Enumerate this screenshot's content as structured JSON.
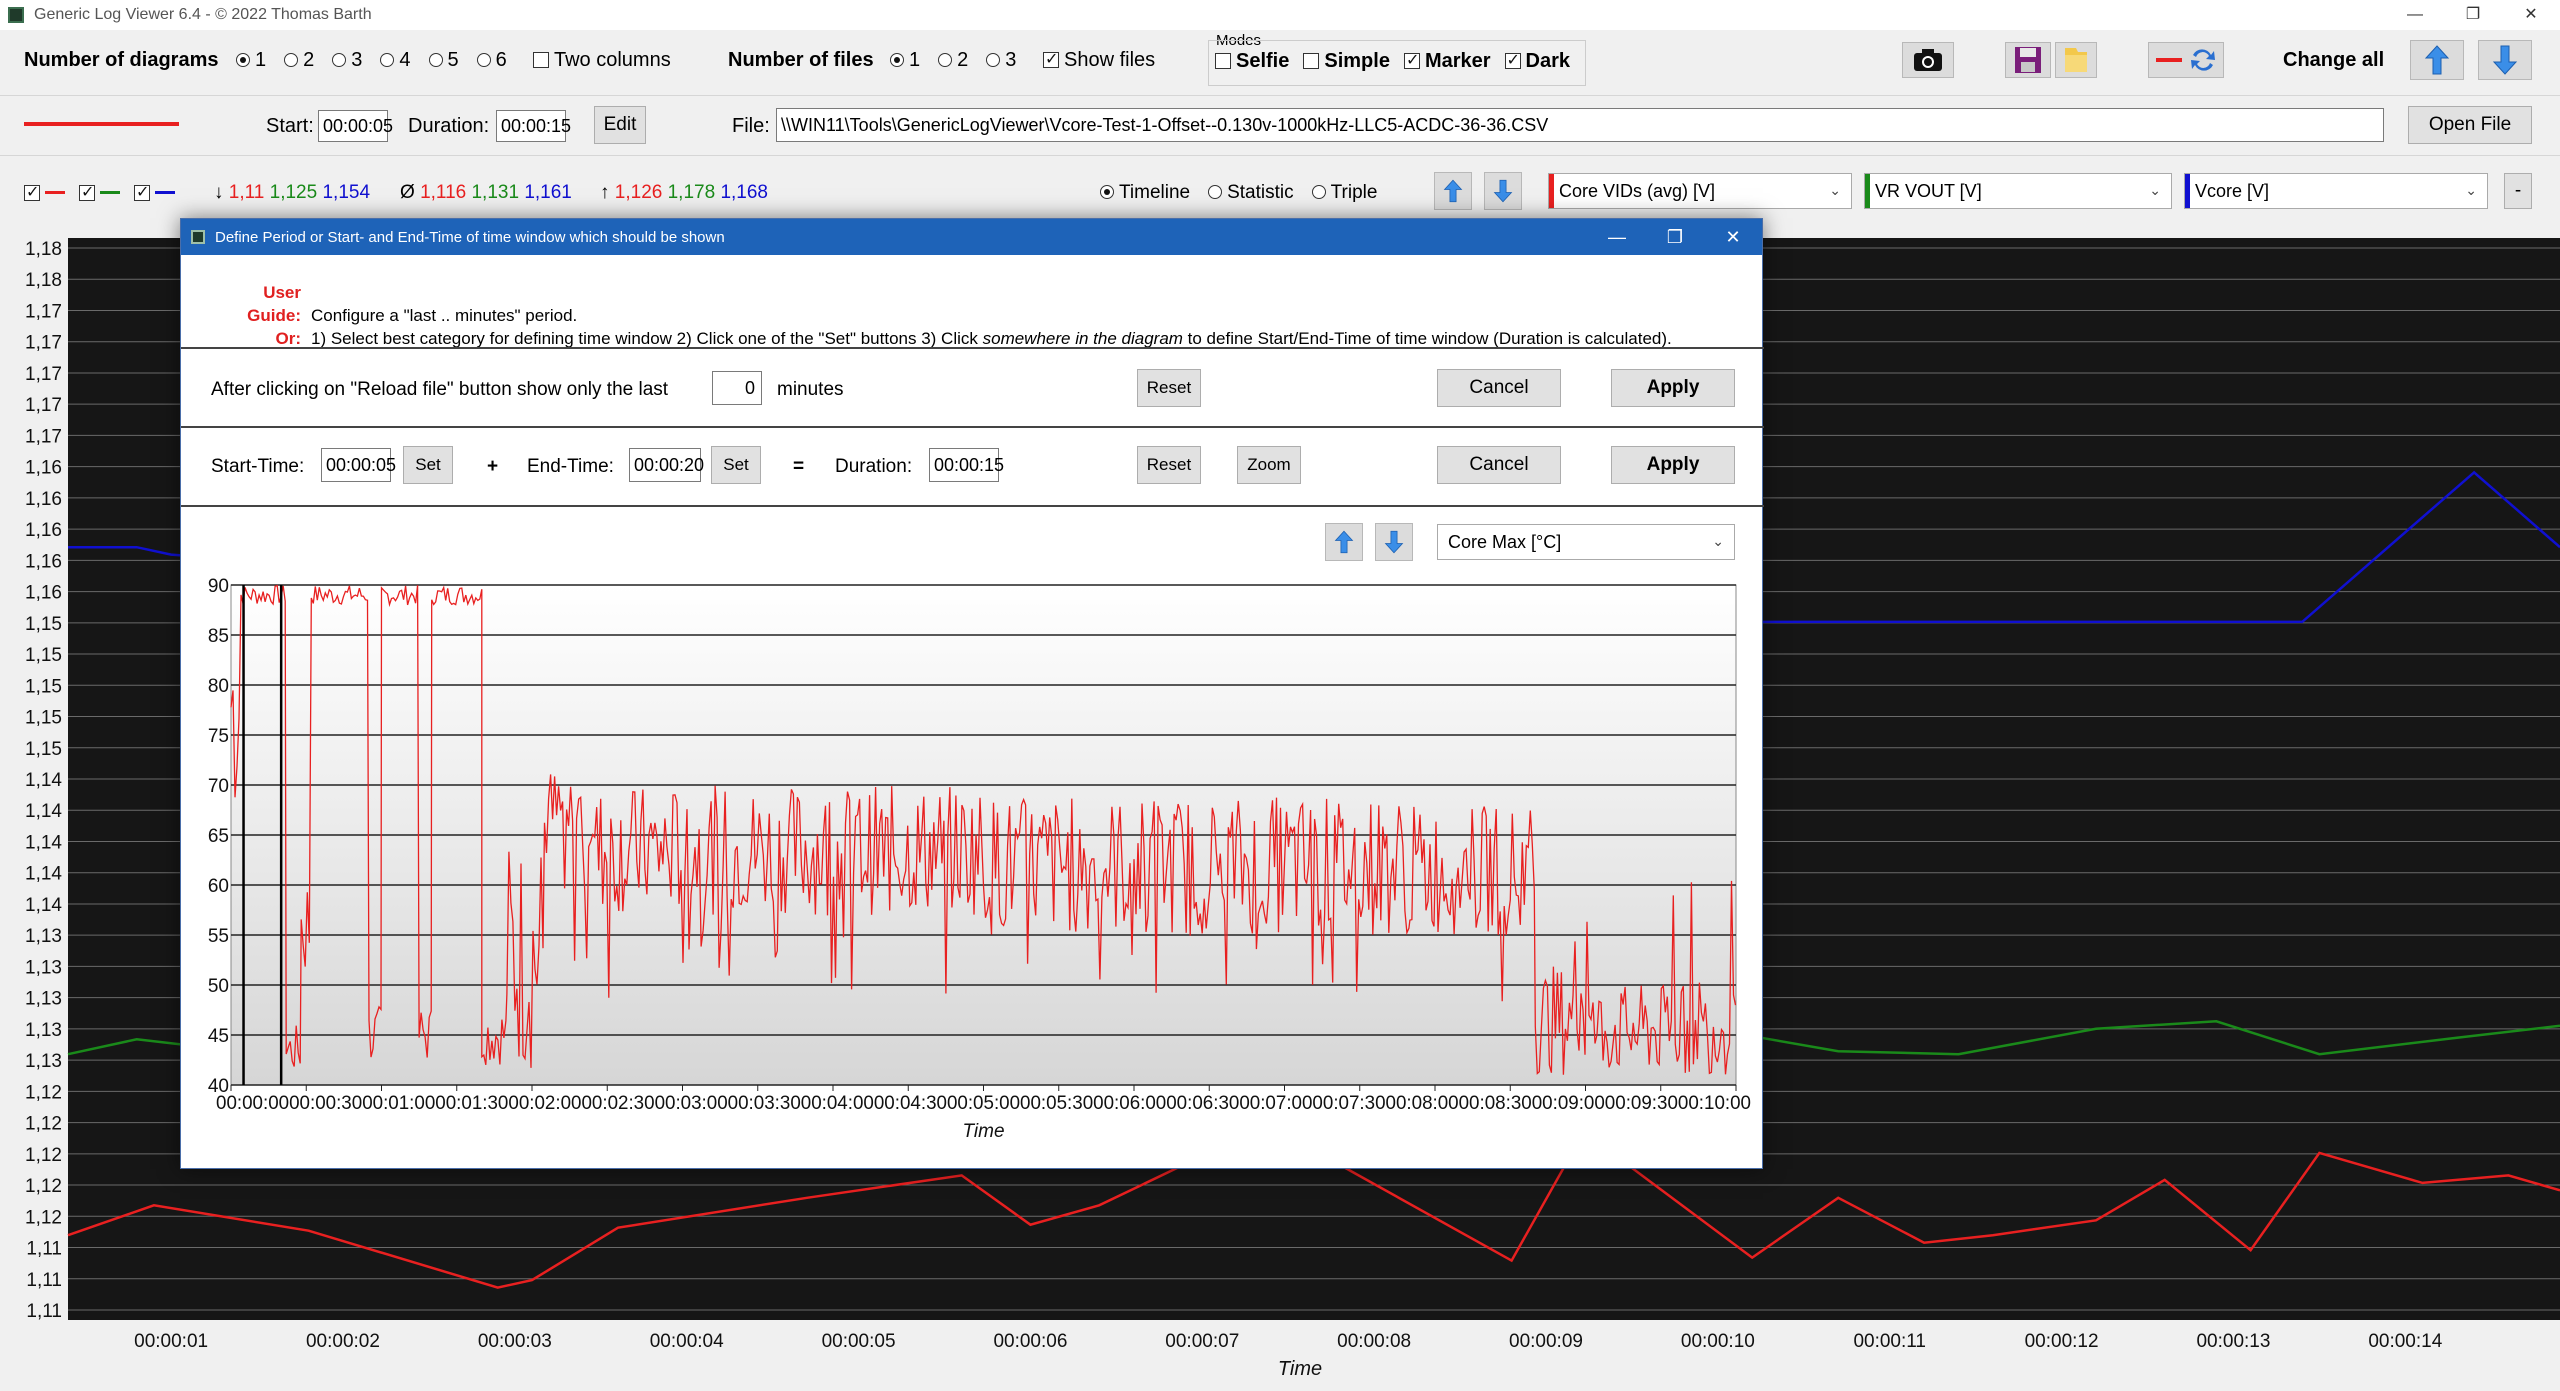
{
  "window": {
    "title": "Generic Log Viewer 6.4 - © 2022 Thomas Barth",
    "min": "—",
    "max": "❐",
    "close": "✕"
  },
  "row1": {
    "diagrams_label": "Number of diagrams",
    "diagram_options": [
      "1",
      "2",
      "3",
      "4",
      "5",
      "6"
    ],
    "diagram_selected": "1",
    "two_columns": "Two columns",
    "files_label": "Number of files",
    "file_options": [
      "1",
      "2",
      "3"
    ],
    "show_files": "Show files",
    "modes_label": "Modes",
    "modes": [
      "Selfie",
      "Simple",
      "Marker",
      "Dark"
    ],
    "change_all": "Change all"
  },
  "row2": {
    "start_label": "Start:",
    "start_value": "00:00:05",
    "duration_label": "Duration:",
    "duration_value": "00:00:15",
    "edit": "Edit",
    "file_label": "File:",
    "file_path": "\\\\WIN11\\Tools\\GenericLogViewer\\Vcore-Test-1-Offset--0.130v-1000kHz-LLC5-ACDC-36-36.CSV",
    "open_file": "Open File"
  },
  "row3": {
    "min_vals": [
      "1,11",
      "1,125",
      "1,154"
    ],
    "avg_vals": [
      "1,116",
      "1,131",
      "1,161"
    ],
    "max_vals": [
      "1,126",
      "1,178",
      "1,168"
    ],
    "min_sym": "↓",
    "avg_sym": "Ø",
    "max_sym": "↑",
    "view_options": [
      "Timeline",
      "Statistic",
      "Triple"
    ],
    "channels": [
      "Core VIDs (avg) [V]",
      "VR VOUT [V]",
      "Vcore [V]"
    ],
    "minus": "-"
  },
  "colors": {
    "red": "#e82020",
    "green": "#1a8a1a",
    "blue": "#1010d0",
    "dialog_title": "#1e63b8",
    "chart_bg": "#161616"
  },
  "main_chart": {
    "type": "line",
    "y_ticks": [
      "1,18",
      "1,18",
      "1,17",
      "1,17",
      "1,17",
      "1,17",
      "1,17",
      "1,16",
      "1,16",
      "1,16",
      "1,16",
      "1,16",
      "1,15",
      "1,15",
      "1,15",
      "1,15",
      "1,15",
      "1,14",
      "1,14",
      "1,14",
      "1,14",
      "1,14",
      "1,13",
      "1,13",
      "1,13",
      "1,13",
      "1,13",
      "1,12",
      "1,12",
      "1,12",
      "1,12",
      "1,12",
      "1,11",
      "1,11",
      "1,11"
    ],
    "x_ticks": [
      "00:00:01",
      "00:00:02",
      "00:00:03",
      "00:00:04",
      "00:00:05",
      "00:00:06",
      "00:00:07",
      "00:00:08",
      "00:00:09",
      "00:00:10",
      "00:00:11",
      "00:00:12",
      "00:00:13",
      "00:00:14"
    ],
    "xlabel": "Time",
    "xlim": [
      0.4,
      14.9
    ],
    "ylim": [
      1.1095,
      1.1805
    ],
    "series": [
      {
        "color": "red",
        "x": [
          0.4,
          0.9,
          1.8,
          2.9,
          3.1,
          3.6,
          4.7,
          5.6,
          6.0,
          6.4,
          7.0,
          7.8,
          8.8,
          9.2,
          9.5,
          10.2,
          10.7,
          11.2,
          11.6,
          12.2,
          12.6,
          13.1,
          13.5,
          14.1,
          14.6,
          14.9
        ],
        "y": [
          1.1145,
          1.1165,
          1.1148,
          1.111,
          1.1115,
          1.115,
          1.117,
          1.1185,
          1.1152,
          1.1165,
          1.1198,
          1.1192,
          1.1128,
          1.121,
          1.119,
          1.113,
          1.117,
          1.114,
          1.1145,
          1.1155,
          1.1182,
          1.1135,
          1.12,
          1.118,
          1.1185,
          1.1175
        ]
      },
      {
        "color": "green",
        "x": [
          0.4,
          0.8,
          1.4,
          2.0,
          3.0,
          4.0,
          5.0,
          6.0,
          7.0,
          8.0,
          9.0,
          10.0,
          10.7,
          11.4,
          12.2,
          12.9,
          13.5,
          14.3,
          14.9
        ],
        "y": [
          1.1266,
          1.1276,
          1.1268,
          1.128,
          1.1278,
          1.1283,
          1.1285,
          1.1288,
          1.1292,
          1.1295,
          1.129,
          1.1282,
          1.1268,
          1.1266,
          1.1283,
          1.1288,
          1.1266,
          1.1277,
          1.1285
        ]
      },
      {
        "color": "blue",
        "x": [
          0.4,
          0.8,
          1.0,
          1.6,
          2.2,
          3.0,
          4.0,
          5.0,
          6.0,
          7.0,
          8.0,
          9.0,
          10.0,
          11.0,
          12.0,
          12.6,
          13.4,
          14.4,
          14.9
        ],
        "y": [
          1.1605,
          1.1605,
          1.16,
          1.1595,
          1.1588,
          1.158,
          1.157,
          1.1565,
          1.1562,
          1.156,
          1.1556,
          1.1556,
          1.1555,
          1.1555,
          1.1555,
          1.1555,
          1.1555,
          1.1655,
          1.1605
        ]
      }
    ]
  },
  "dialog": {
    "title": "Define Period or Start- and End-Time of time window which should be shown",
    "guide_label": "User Guide:",
    "guide_text": "Configure a \"last .. minutes\" period.",
    "or_label": "Or:",
    "or_text_1": "1) Select best category for defining time window   2) Click one of the \"Set\" buttons   3) Click ",
    "or_text_em": "somewhere in the diagram",
    "or_text_2": " to define Start/End-Time of time window (Duration is calculated).",
    "reload_text": "After clicking on \"Reload file\" button show only the last",
    "minutes_value": "0",
    "minutes_label": "minutes",
    "reset": "Reset",
    "cancel": "Cancel",
    "apply": "Apply",
    "start_label": "Start-Time:",
    "start_value": "00:00:05",
    "set": "Set",
    "plus": "+",
    "end_label": "End-Time:",
    "end_value": "00:00:20",
    "equals": "=",
    "duration_label": "Duration:",
    "duration_value": "00:00:15",
    "zoom": "Zoom",
    "channel": "Core Max [°C]"
  },
  "dialog_chart": {
    "type": "line",
    "ylim": [
      40,
      90
    ],
    "y_ticks": [
      "90",
      "85",
      "80",
      "75",
      "70",
      "65",
      "60",
      "55",
      "50",
      "45",
      "40"
    ],
    "x_ticks": [
      "00:00:00",
      "00:00:30",
      "00:01:00",
      "00:01:30",
      "00:02:00",
      "00:02:30",
      "00:03:00",
      "00:03:30",
      "00:04:00",
      "00:04:30",
      "00:05:00",
      "00:05:30",
      "00:06:00",
      "00:06:30",
      "00:07:00",
      "00:07:30",
      "00:08:00",
      "00:08:30",
      "00:09:00",
      "00:09:30",
      "00:10:00"
    ],
    "xlabel": "Time",
    "xlim_seconds": [
      0,
      600
    ],
    "marker_seconds": [
      5,
      20
    ],
    "series": [
      {
        "color": "red",
        "seed": 7
      }
    ]
  }
}
